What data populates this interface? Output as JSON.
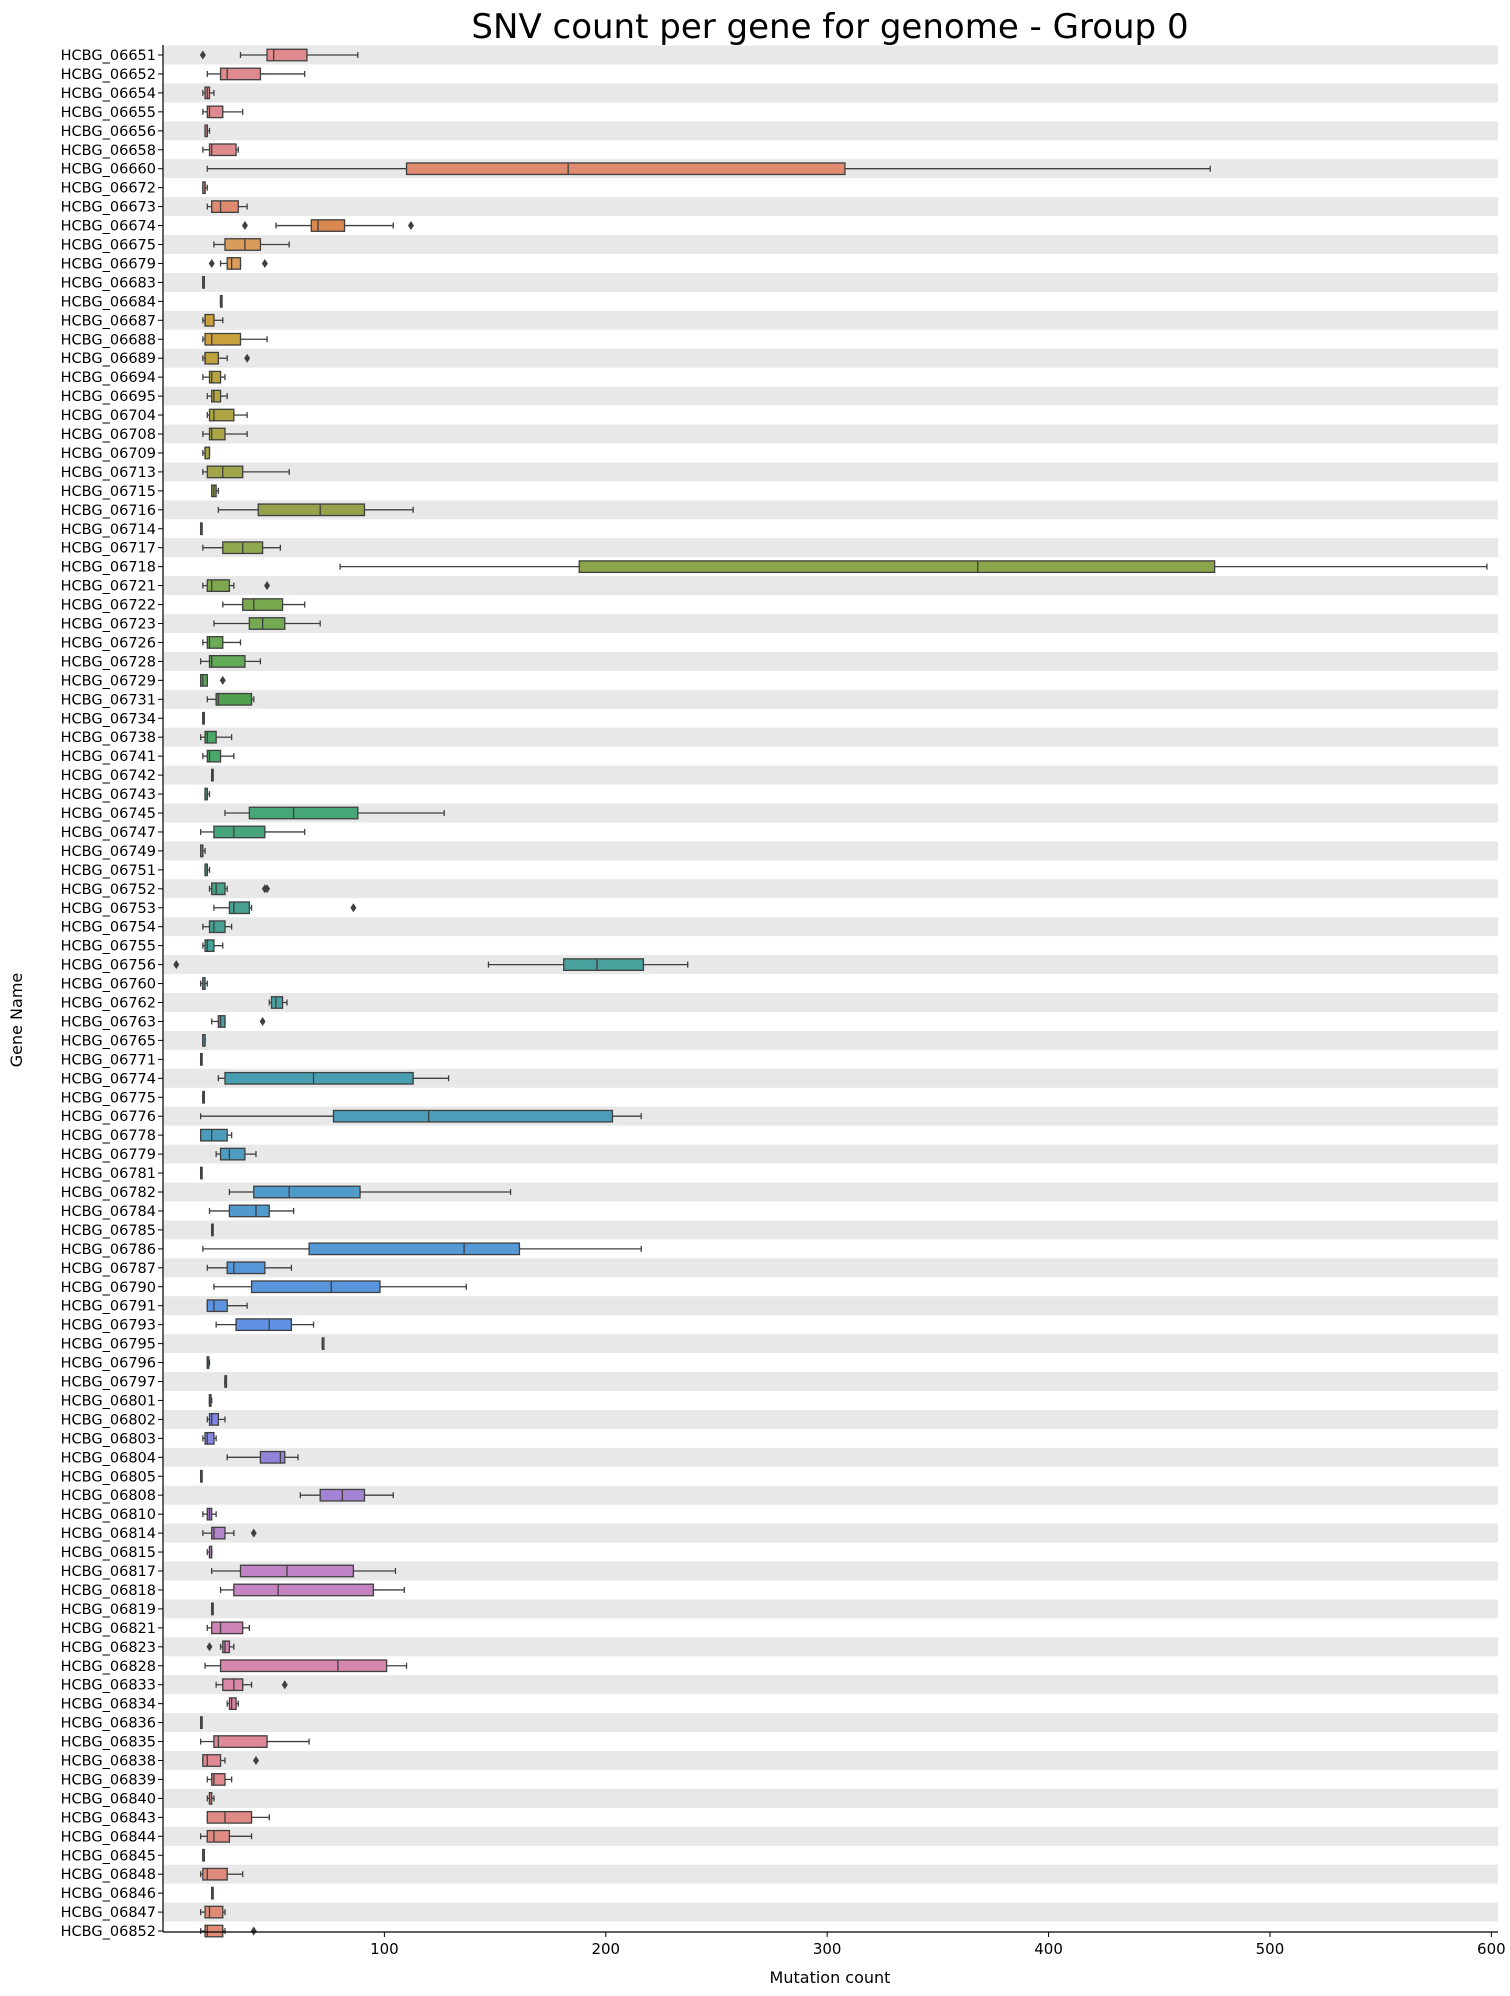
{
  "chart_data": {
    "type": "box",
    "orientation": "horizontal",
    "title": "SNV count per gene for genome - Group 0",
    "xlabel": "Mutation count",
    "ylabel": "Gene Name",
    "xlim": [
      0,
      603
    ],
    "x_ticks": [
      100,
      200,
      300,
      400,
      500,
      600
    ],
    "grid": false,
    "row_stripes": true,
    "stripe_color": "#e8e8e8",
    "box_edge_color": "#3f3f3f",
    "categories": [
      "HCBG_06651",
      "HCBG_06652",
      "HCBG_06654",
      "HCBG_06655",
      "HCBG_06656",
      "HCBG_06658",
      "HCBG_06660",
      "HCBG_06672",
      "HCBG_06673",
      "HCBG_06674",
      "HCBG_06675",
      "HCBG_06679",
      "HCBG_06683",
      "HCBG_06684",
      "HCBG_06687",
      "HCBG_06688",
      "HCBG_06689",
      "HCBG_06694",
      "HCBG_06695",
      "HCBG_06704",
      "HCBG_06708",
      "HCBG_06709",
      "HCBG_06713",
      "HCBG_06715",
      "HCBG_06716",
      "HCBG_06714",
      "HCBG_06717",
      "HCBG_06718",
      "HCBG_06721",
      "HCBG_06722",
      "HCBG_06723",
      "HCBG_06726",
      "HCBG_06728",
      "HCBG_06729",
      "HCBG_06731",
      "HCBG_06734",
      "HCBG_06738",
      "HCBG_06741",
      "HCBG_06742",
      "HCBG_06743",
      "HCBG_06745",
      "HCBG_06747",
      "HCBG_06749",
      "HCBG_06751",
      "HCBG_06752",
      "HCBG_06753",
      "HCBG_06754",
      "HCBG_06755",
      "HCBG_06756",
      "HCBG_06760",
      "HCBG_06762",
      "HCBG_06763",
      "HCBG_06765",
      "HCBG_06771",
      "HCBG_06774",
      "HCBG_06775",
      "HCBG_06776",
      "HCBG_06778",
      "HCBG_06779",
      "HCBG_06781",
      "HCBG_06782",
      "HCBG_06784",
      "HCBG_06785",
      "HCBG_06786",
      "HCBG_06787",
      "HCBG_06790",
      "HCBG_06791",
      "HCBG_06793",
      "HCBG_06795",
      "HCBG_06796",
      "HCBG_06797",
      "HCBG_06801",
      "HCBG_06802",
      "HCBG_06803",
      "HCBG_06804",
      "HCBG_06805",
      "HCBG_06808",
      "HCBG_06810",
      "HCBG_06814",
      "HCBG_06815",
      "HCBG_06817",
      "HCBG_06818",
      "HCBG_06819",
      "HCBG_06821",
      "HCBG_06823",
      "HCBG_06828",
      "HCBG_06833",
      "HCBG_06834",
      "HCBG_06836",
      "HCBG_06835",
      "HCBG_06838",
      "HCBG_06839",
      "HCBG_06840",
      "HCBG_06843",
      "HCBG_06844",
      "HCBG_06845",
      "HCBG_06848",
      "HCBG_06846",
      "HCBG_06847",
      "HCBG_06852"
    ],
    "colors": [
      "#df8a8e",
      "#df8a8e",
      "#df8a8e",
      "#df8a8e",
      "#df8a8e",
      "#df8a8e",
      "#e08b6f",
      "#e08b6f",
      "#e08b6f",
      "#d98850",
      "#d99c5a",
      "#d99c5a",
      "#d39c48",
      "#cfa048",
      "#c99f3e",
      "#c9a23e",
      "#c0a340",
      "#b8a540",
      "#b5a641",
      "#aea644",
      "#aba745",
      "#a5a747",
      "#a2a64b",
      "#9da64b",
      "#97a04a",
      "#96a24a",
      "#90a84d",
      "#8ca54a",
      "#7fa74f",
      "#7aa84f",
      "#73aa52",
      "#6caa55",
      "#63aa58",
      "#5da85a",
      "#4f9f4f",
      "#4fa85e",
      "#4aa865",
      "#49a867",
      "#48a76c",
      "#47a771",
      "#47a676",
      "#47a57c",
      "#47a580",
      "#47a485",
      "#47a38a",
      "#47a38f",
      "#47a294",
      "#47a198",
      "#48a19c",
      "#48a19f",
      "#48a0a3",
      "#49a0a7",
      "#499fab",
      "#4a9fae",
      "#4a9eb1",
      "#4b9eb5",
      "#4b9db9",
      "#4c9dbd",
      "#4d9cc1",
      "#4e9cc5",
      "#4f9bc9",
      "#519acd",
      "#5299d1",
      "#5498d5",
      "#5697d9",
      "#5995dd",
      "#5c94e1",
      "#6091e4",
      "#6590e6",
      "#6b8fe6",
      "#718de6",
      "#788be5",
      "#8088e3",
      "#8886df",
      "#9185db",
      "#9a84d6",
      "#a383d3",
      "#ab83cf",
      "#b383cc",
      "#ba83c8",
      "#c083c5",
      "#c583c1",
      "#ca84bd",
      "#cf84b8",
      "#d385b3",
      "#d786ae",
      "#da87a8",
      "#dd88a3",
      "#df889d",
      "#e08898",
      "#e18993",
      "#e1898e",
      "#e18a8a",
      "#e08a86",
      "#e08b82",
      "#df8b7f",
      "#df8b7c",
      "#df8b7a",
      "#df8b78",
      "#df8b76"
    ],
    "boxes": [
      {
        "min": 35,
        "q1": 47,
        "med": 50,
        "q3": 65,
        "max": 88,
        "outliers": [
          18
        ]
      },
      {
        "min": 20,
        "q1": 26,
        "med": 29,
        "q3": 44,
        "max": 64,
        "outliers": []
      },
      {
        "min": 18,
        "q1": 19,
        "med": 20,
        "q3": 21,
        "max": 23,
        "outliers": []
      },
      {
        "min": 18,
        "q1": 20,
        "med": 21,
        "q3": 27,
        "max": 36,
        "outliers": []
      },
      {
        "min": 19,
        "q1": 19,
        "med": 20,
        "q3": 20,
        "max": 21,
        "outliers": []
      },
      {
        "min": 18,
        "q1": 21,
        "med": 22,
        "q3": 33,
        "max": 34,
        "outliers": []
      },
      {
        "min": 20,
        "q1": 110,
        "med": 183,
        "q3": 308,
        "max": 473,
        "outliers": []
      },
      {
        "min": 18,
        "q1": 18,
        "med": 19,
        "q3": 19,
        "max": 20,
        "outliers": []
      },
      {
        "min": 20,
        "q1": 22,
        "med": 26,
        "q3": 34,
        "max": 38,
        "outliers": []
      },
      {
        "min": 51,
        "q1": 67,
        "med": 70,
        "q3": 82,
        "max": 104,
        "outliers": [
          37,
          112
        ]
      },
      {
        "min": 23,
        "q1": 28,
        "med": 37,
        "q3": 44,
        "max": 57,
        "outliers": []
      },
      {
        "min": 26,
        "q1": 29,
        "med": 31,
        "q3": 35,
        "max": 35,
        "outliers": [
          22,
          46
        ]
      },
      {
        "min": 18,
        "q1": 18,
        "med": 18,
        "q3": 18,
        "max": 18,
        "outliers": []
      },
      {
        "min": 26,
        "q1": 26,
        "med": 26,
        "q3": 26,
        "max": 26,
        "outliers": []
      },
      {
        "min": 18,
        "q1": 19,
        "med": 19,
        "q3": 23,
        "max": 27,
        "outliers": []
      },
      {
        "min": 18,
        "q1": 19,
        "med": 22,
        "q3": 35,
        "max": 47,
        "outliers": []
      },
      {
        "min": 18,
        "q1": 19,
        "med": 19,
        "q3": 25,
        "max": 29,
        "outliers": [
          38
        ]
      },
      {
        "min": 18,
        "q1": 21,
        "med": 22,
        "q3": 26,
        "max": 28,
        "outliers": []
      },
      {
        "min": 20,
        "q1": 22,
        "med": 23,
        "q3": 26,
        "max": 29,
        "outliers": []
      },
      {
        "min": 20,
        "q1": 21,
        "med": 23,
        "q3": 32,
        "max": 38,
        "outliers": []
      },
      {
        "min": 18,
        "q1": 21,
        "med": 22,
        "q3": 28,
        "max": 38,
        "outliers": []
      },
      {
        "min": 18,
        "q1": 19,
        "med": 19,
        "q3": 21,
        "max": 21,
        "outliers": []
      },
      {
        "min": 18,
        "q1": 20,
        "med": 27,
        "q3": 36,
        "max": 57,
        "outliers": []
      },
      {
        "min": 22,
        "q1": 22,
        "med": 23,
        "q3": 24,
        "max": 25,
        "outliers": []
      },
      {
        "min": 25,
        "q1": 43,
        "med": 71,
        "q3": 91,
        "max": 113,
        "outliers": []
      },
      {
        "min": 17,
        "q1": 17,
        "med": 17,
        "q3": 17,
        "max": 17,
        "outliers": []
      },
      {
        "min": 18,
        "q1": 27,
        "med": 36,
        "q3": 45,
        "max": 53,
        "outliers": []
      },
      {
        "min": 80,
        "q1": 188,
        "med": 368,
        "q3": 475,
        "max": 598,
        "outliers": []
      },
      {
        "min": 18,
        "q1": 20,
        "med": 22,
        "q3": 30,
        "max": 32,
        "outliers": [
          47
        ]
      },
      {
        "min": 27,
        "q1": 36,
        "med": 41,
        "q3": 54,
        "max": 64,
        "outliers": []
      },
      {
        "min": 23,
        "q1": 39,
        "med": 45,
        "q3": 55,
        "max": 71,
        "outliers": []
      },
      {
        "min": 18,
        "q1": 20,
        "med": 21,
        "q3": 27,
        "max": 35,
        "outliers": []
      },
      {
        "min": 17,
        "q1": 21,
        "med": 22,
        "q3": 37,
        "max": 44,
        "outliers": []
      },
      {
        "min": 17,
        "q1": 17,
        "med": 18,
        "q3": 20,
        "max": 20,
        "outliers": [
          27
        ]
      },
      {
        "min": 20,
        "q1": 24,
        "med": 25,
        "q3": 40,
        "max": 41,
        "outliers": []
      },
      {
        "min": 18,
        "q1": 18,
        "med": 18,
        "q3": 18,
        "max": 18,
        "outliers": []
      },
      {
        "min": 17,
        "q1": 19,
        "med": 20,
        "q3": 24,
        "max": 31,
        "outliers": []
      },
      {
        "min": 18,
        "q1": 20,
        "med": 21,
        "q3": 26,
        "max": 32,
        "outliers": []
      },
      {
        "min": 22,
        "q1": 22,
        "med": 22,
        "q3": 22,
        "max": 22,
        "outliers": []
      },
      {
        "min": 19,
        "q1": 19,
        "med": 20,
        "q3": 20,
        "max": 21,
        "outliers": []
      },
      {
        "min": 28,
        "q1": 39,
        "med": 59,
        "q3": 88,
        "max": 127,
        "outliers": []
      },
      {
        "min": 17,
        "q1": 23,
        "med": 32,
        "q3": 46,
        "max": 64,
        "outliers": []
      },
      {
        "min": 17,
        "q1": 17,
        "med": 18,
        "q3": 18,
        "max": 19,
        "outliers": []
      },
      {
        "min": 19,
        "q1": 19,
        "med": 20,
        "q3": 20,
        "max": 21,
        "outliers": []
      },
      {
        "min": 21,
        "q1": 22,
        "med": 24,
        "q3": 28,
        "max": 29,
        "outliers": [
          46,
          47
        ]
      },
      {
        "min": 23,
        "q1": 30,
        "med": 32,
        "q3": 39,
        "max": 40,
        "outliers": [
          86
        ]
      },
      {
        "min": 18,
        "q1": 21,
        "med": 23,
        "q3": 28,
        "max": 31,
        "outliers": []
      },
      {
        "min": 18,
        "q1": 19,
        "med": 20,
        "q3": 23,
        "max": 27,
        "outliers": []
      },
      {
        "min": 147,
        "q1": 181,
        "med": 196,
        "q3": 217,
        "max": 237,
        "outliers": [
          6
        ]
      },
      {
        "min": 17,
        "q1": 18,
        "med": 18,
        "q3": 19,
        "max": 20,
        "outliers": []
      },
      {
        "min": 48,
        "q1": 49,
        "med": 51,
        "q3": 54,
        "max": 56,
        "outliers": []
      },
      {
        "min": 22,
        "q1": 25,
        "med": 26,
        "q3": 28,
        "max": 28,
        "outliers": [
          45
        ]
      },
      {
        "min": 18,
        "q1": 18,
        "med": 18,
        "q3": 19,
        "max": 19,
        "outliers": []
      },
      {
        "min": 17,
        "q1": 17,
        "med": 17,
        "q3": 17,
        "max": 17,
        "outliers": []
      },
      {
        "min": 25,
        "q1": 28,
        "med": 68,
        "q3": 113,
        "max": 129,
        "outliers": []
      },
      {
        "min": 18,
        "q1": 18,
        "med": 18,
        "q3": 18,
        "max": 18,
        "outliers": []
      },
      {
        "min": 17,
        "q1": 77,
        "med": 120,
        "q3": 203,
        "max": 216,
        "outliers": []
      },
      {
        "min": 17,
        "q1": 17,
        "med": 22,
        "q3": 29,
        "max": 31,
        "outliers": []
      },
      {
        "min": 24,
        "q1": 26,
        "med": 30,
        "q3": 37,
        "max": 42,
        "outliers": []
      },
      {
        "min": 17,
        "q1": 17,
        "med": 17,
        "q3": 17,
        "max": 17,
        "outliers": []
      },
      {
        "min": 30,
        "q1": 41,
        "med": 57,
        "q3": 89,
        "max": 157,
        "outliers": []
      },
      {
        "min": 21,
        "q1": 30,
        "med": 42,
        "q3": 48,
        "max": 59,
        "outliers": []
      },
      {
        "min": 22,
        "q1": 22,
        "med": 22,
        "q3": 22,
        "max": 22,
        "outliers": []
      },
      {
        "min": 18,
        "q1": 66,
        "med": 136,
        "q3": 161,
        "max": 216,
        "outliers": []
      },
      {
        "min": 20,
        "q1": 29,
        "med": 32,
        "q3": 46,
        "max": 58,
        "outliers": []
      },
      {
        "min": 23,
        "q1": 40,
        "med": 76,
        "q3": 98,
        "max": 137,
        "outliers": []
      },
      {
        "min": 20,
        "q1": 20,
        "med": 23,
        "q3": 29,
        "max": 38,
        "outliers": []
      },
      {
        "min": 24,
        "q1": 33,
        "med": 48,
        "q3": 58,
        "max": 68,
        "outliers": []
      },
      {
        "min": 72,
        "q1": 72,
        "med": 72,
        "q3": 72,
        "max": 72,
        "outliers": []
      },
      {
        "min": 20,
        "q1": 20,
        "med": 20,
        "q3": 20,
        "max": 21,
        "outliers": []
      },
      {
        "min": 28,
        "q1": 28,
        "med": 28,
        "q3": 28,
        "max": 28,
        "outliers": []
      },
      {
        "min": 21,
        "q1": 21,
        "med": 21,
        "q3": 21,
        "max": 22,
        "outliers": []
      },
      {
        "min": 20,
        "q1": 21,
        "med": 22,
        "q3": 25,
        "max": 28,
        "outliers": []
      },
      {
        "min": 18,
        "q1": 19,
        "med": 20,
        "q3": 23,
        "max": 24,
        "outliers": []
      },
      {
        "min": 29,
        "q1": 44,
        "med": 53,
        "q3": 55,
        "max": 61,
        "outliers": []
      },
      {
        "min": 17,
        "q1": 17,
        "med": 17,
        "q3": 17,
        "max": 17,
        "outliers": []
      },
      {
        "min": 62,
        "q1": 71,
        "med": 81,
        "q3": 91,
        "max": 104,
        "outliers": []
      },
      {
        "min": 18,
        "q1": 20,
        "med": 21,
        "q3": 22,
        "max": 24,
        "outliers": []
      },
      {
        "min": 18,
        "q1": 22,
        "med": 23,
        "q3": 28,
        "max": 32,
        "outliers": [
          41
        ]
      },
      {
        "min": 20,
        "q1": 21,
        "med": 21,
        "q3": 22,
        "max": 22,
        "outliers": []
      },
      {
        "min": 22,
        "q1": 35,
        "med": 56,
        "q3": 86,
        "max": 105,
        "outliers": []
      },
      {
        "min": 26,
        "q1": 32,
        "med": 52,
        "q3": 95,
        "max": 109,
        "outliers": []
      },
      {
        "min": 22,
        "q1": 22,
        "med": 22,
        "q3": 22,
        "max": 22,
        "outliers": []
      },
      {
        "min": 20,
        "q1": 22,
        "med": 26,
        "q3": 36,
        "max": 39,
        "outliers": []
      },
      {
        "min": 26,
        "q1": 27,
        "med": 28,
        "q3": 30,
        "max": 32,
        "outliers": [
          21
        ]
      },
      {
        "min": 19,
        "q1": 26,
        "med": 79,
        "q3": 101,
        "max": 110,
        "outliers": []
      },
      {
        "min": 24,
        "q1": 27,
        "med": 32,
        "q3": 36,
        "max": 40,
        "outliers": [
          55
        ]
      },
      {
        "min": 29,
        "q1": 30,
        "med": 31,
        "q3": 33,
        "max": 34,
        "outliers": []
      },
      {
        "min": 17,
        "q1": 17,
        "med": 17,
        "q3": 17,
        "max": 17,
        "outliers": []
      },
      {
        "min": 17,
        "q1": 23,
        "med": 25,
        "q3": 47,
        "max": 66,
        "outliers": []
      },
      {
        "min": 18,
        "q1": 18,
        "med": 20,
        "q3": 26,
        "max": 28,
        "outliers": [
          42
        ]
      },
      {
        "min": 20,
        "q1": 22,
        "med": 23,
        "q3": 28,
        "max": 31,
        "outliers": []
      },
      {
        "min": 20,
        "q1": 21,
        "med": 21,
        "q3": 22,
        "max": 23,
        "outliers": []
      },
      {
        "min": 20,
        "q1": 20,
        "med": 28,
        "q3": 40,
        "max": 48,
        "outliers": []
      },
      {
        "min": 17,
        "q1": 20,
        "med": 23,
        "q3": 30,
        "max": 40,
        "outliers": []
      },
      {
        "min": 18,
        "q1": 18,
        "med": 18,
        "q3": 18,
        "max": 18,
        "outliers": []
      },
      {
        "min": 17,
        "q1": 18,
        "med": 20,
        "q3": 29,
        "max": 36,
        "outliers": []
      },
      {
        "min": 22,
        "q1": 22,
        "med": 22,
        "q3": 22,
        "max": 22,
        "outliers": []
      },
      {
        "min": 17,
        "q1": 19,
        "med": 21,
        "q3": 27,
        "max": 28,
        "outliers": []
      },
      {
        "min": 17,
        "q1": 19,
        "med": 20,
        "q3": 27,
        "max": 28,
        "outliers": [
          41
        ]
      }
    ]
  }
}
